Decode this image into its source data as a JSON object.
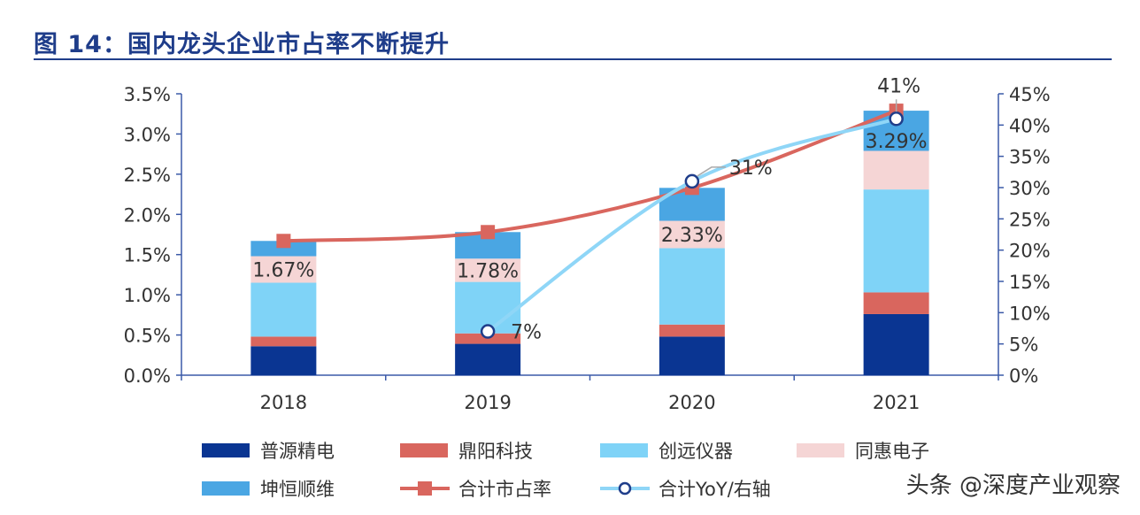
{
  "title": "图 14：国内龙头企业市占率不断提升",
  "watermark": "头条 @深度产业观察",
  "colors": {
    "title": "#1f3d8a",
    "axis": "#3b5aa8",
    "series": [
      "#0a3592",
      "#d9665e",
      "#7fd3f7",
      "#f5d5d5",
      "#4aa6e3"
    ],
    "share_line": "#d9665e",
    "yoy_line": "#8fd6f7",
    "yoy_marker": "#1f3d8a",
    "label": "#333333"
  },
  "chart_data": {
    "type": "bar",
    "stacked": true,
    "categories": [
      "2018",
      "2019",
      "2020",
      "2021"
    ],
    "series": [
      {
        "name": "普源精电",
        "values": [
          0.36,
          0.39,
          0.48,
          0.76
        ]
      },
      {
        "name": "鼎阳科技",
        "values": [
          0.12,
          0.13,
          0.15,
          0.27
        ]
      },
      {
        "name": "创远仪器",
        "values": [
          0.67,
          0.64,
          0.95,
          1.28
        ]
      },
      {
        "name": "同惠电子",
        "values": [
          0.33,
          0.29,
          0.34,
          0.48
        ]
      },
      {
        "name": "坤恒顺维",
        "values": [
          0.19,
          0.33,
          0.41,
          0.5
        ]
      }
    ],
    "totals": [
      1.67,
      1.78,
      2.33,
      3.29
    ],
    "total_labels": [
      "1.67%",
      "1.78%",
      "2.33%",
      "3.29%"
    ],
    "lines": [
      {
        "name": "合计市占率",
        "axis": "left",
        "values": [
          1.67,
          1.78,
          2.33,
          3.29
        ],
        "marker": "square"
      },
      {
        "name": "合计YoY/右轴",
        "axis": "right",
        "values": [
          null,
          7,
          31,
          41
        ],
        "marker": "circle"
      }
    ],
    "yoy_labels": [
      "",
      "7%",
      "31%",
      "41%"
    ],
    "left_axis": {
      "min": 0,
      "max": 3.5,
      "ticks": [
        "0.0%",
        "0.5%",
        "1.0%",
        "1.5%",
        "2.0%",
        "2.5%",
        "3.0%",
        "3.5%"
      ]
    },
    "right_axis": {
      "min": 0,
      "max": 45,
      "ticks": [
        "0%",
        "5%",
        "10%",
        "15%",
        "20%",
        "25%",
        "30%",
        "35%",
        "40%",
        "45%"
      ]
    },
    "legend": [
      {
        "name": "普源精电",
        "kind": "bar",
        "series": 0
      },
      {
        "name": "鼎阳科技",
        "kind": "bar",
        "series": 1
      },
      {
        "name": "创远仪器",
        "kind": "bar",
        "series": 2
      },
      {
        "name": "同惠电子",
        "kind": "bar",
        "series": 3
      },
      {
        "name": "坤恒顺维",
        "kind": "bar",
        "series": 4
      },
      {
        "name": "合计市占率",
        "kind": "line-square"
      },
      {
        "name": "合计YoY/右轴",
        "kind": "line-circle"
      }
    ],
    "legend_position": "bottom",
    "grid": false
  }
}
